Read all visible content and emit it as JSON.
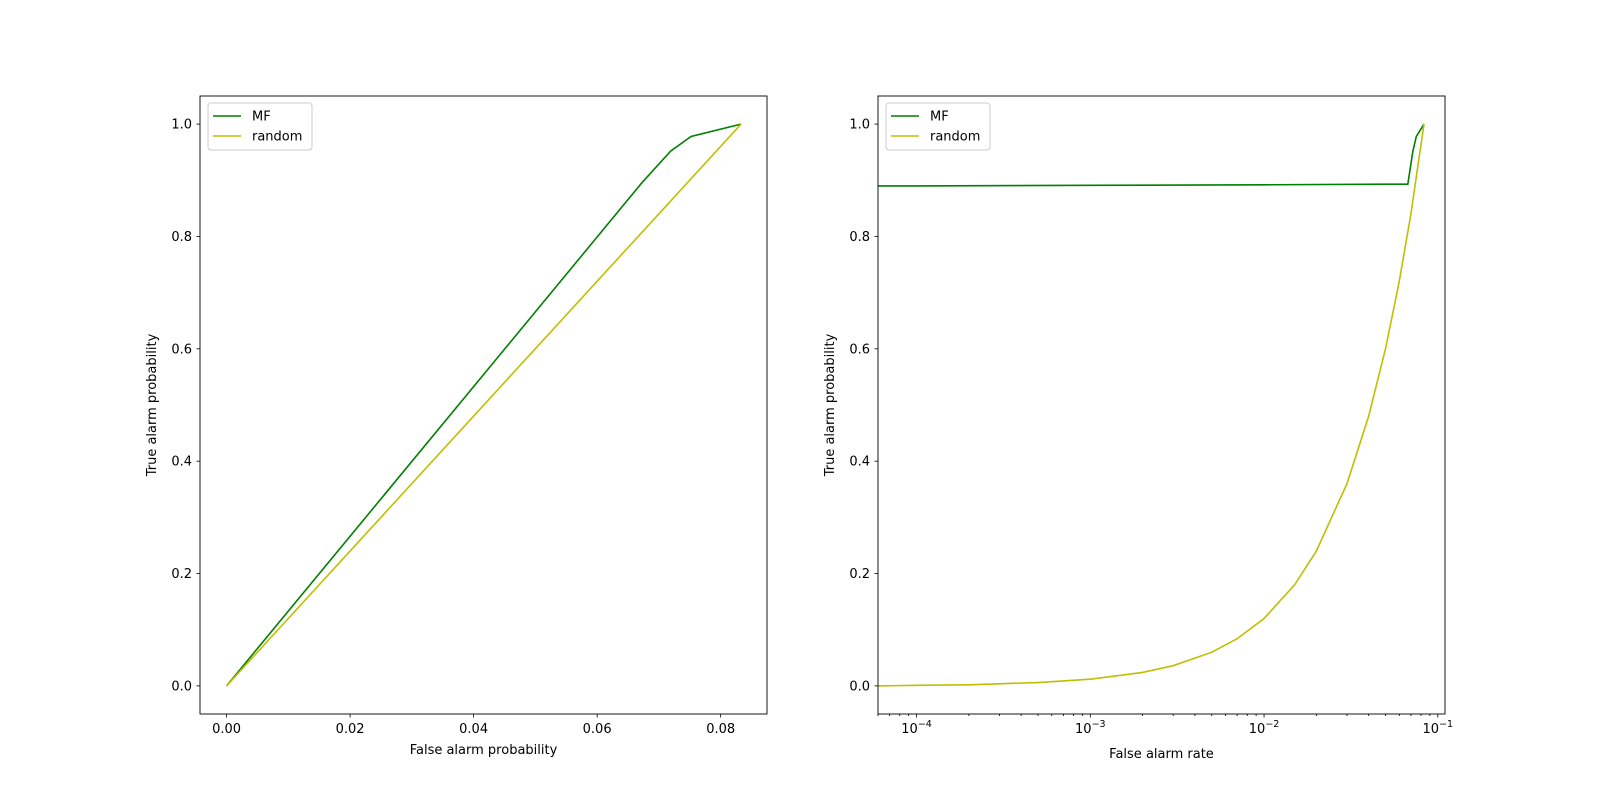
{
  "chart_data": [
    {
      "type": "line",
      "title": "",
      "xlabel": "False alarm probability",
      "ylabel": "True alarm probability",
      "xscale": "linear",
      "xlim": [
        -0.0043,
        0.0875
      ],
      "ylim": [
        -0.05,
        1.05
      ],
      "xticks": [
        0.0,
        0.02,
        0.04,
        0.06,
        0.08
      ],
      "xtick_labels": [
        "0.00",
        "0.02",
        "0.04",
        "0.06",
        "0.08"
      ],
      "yticks": [
        0.0,
        0.2,
        0.4,
        0.6,
        0.8,
        1.0
      ],
      "ytick_labels": [
        "0.0",
        "0.2",
        "0.4",
        "0.6",
        "0.8",
        "1.0"
      ],
      "grid": false,
      "legend_position": "upper-left",
      "series": [
        {
          "name": "MF",
          "color": "#008000",
          "x": [
            0.0,
            0.0672,
            0.0719,
            0.0752,
            0.0833
          ],
          "y": [
            0.0,
            0.895,
            0.952,
            0.978,
            1.0
          ]
        },
        {
          "name": "random",
          "color": "#bfbf00",
          "x": [
            0.0,
            0.0833
          ],
          "y": [
            0.0,
            1.0
          ]
        }
      ]
    },
    {
      "type": "line",
      "title": "",
      "xlabel": "False alarm rate",
      "ylabel": "True alarm probability",
      "xscale": "log",
      "xlim": [
        6e-05,
        0.11
      ],
      "ylim": [
        -0.05,
        1.05
      ],
      "xticks": [
        0.0001,
        0.001,
        0.01,
        0.1
      ],
      "xtick_labels": [
        {
          "base": "10",
          "exp": "−4"
        },
        {
          "base": "10",
          "exp": "−3"
        },
        {
          "base": "10",
          "exp": "−2"
        },
        {
          "base": "10",
          "exp": "−1"
        }
      ],
      "yticks": [
        0.0,
        0.2,
        0.4,
        0.6,
        0.8,
        1.0
      ],
      "ytick_labels": [
        "0.0",
        "0.2",
        "0.4",
        "0.6",
        "0.8",
        "1.0"
      ],
      "grid": false,
      "legend_position": "upper-left",
      "series": [
        {
          "name": "MF",
          "color": "#008000",
          "x": [
            6e-05,
            0.0001,
            0.001,
            0.01,
            0.05,
            0.0672,
            0.0719,
            0.0752,
            0.0833
          ],
          "y": [
            0.89,
            0.89,
            0.891,
            0.892,
            0.893,
            0.893,
            0.952,
            0.978,
            1.0
          ]
        },
        {
          "name": "random",
          "color": "#bfbf00",
          "x": [
            6e-05,
            0.0001,
            0.0002,
            0.0005,
            0.001,
            0.002,
            0.003,
            0.005,
            0.007,
            0.01,
            0.015,
            0.02,
            0.03,
            0.04,
            0.05,
            0.06,
            0.07,
            0.0833
          ],
          "y": [
            0.0,
            0.001,
            0.002,
            0.006,
            0.012,
            0.024,
            0.036,
            0.06,
            0.084,
            0.12,
            0.18,
            0.24,
            0.36,
            0.48,
            0.6,
            0.72,
            0.84,
            1.0
          ]
        }
      ]
    }
  ]
}
